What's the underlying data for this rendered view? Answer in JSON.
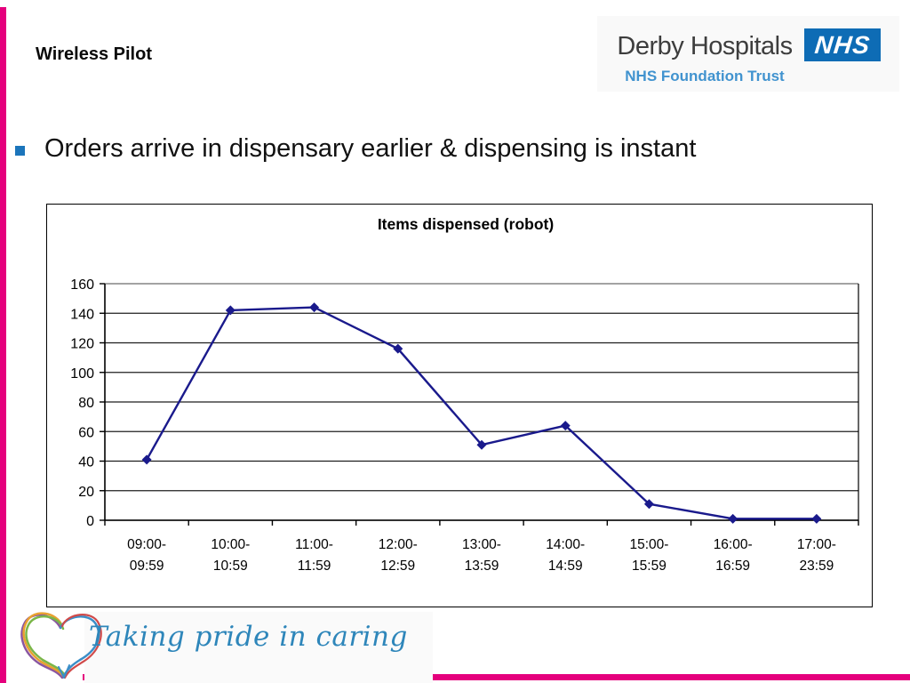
{
  "slide": {
    "title": "Wireless Pilot",
    "bullet_text": "Orders arrive in dispensary earlier & dispensing is instant"
  },
  "header_logo": {
    "org_name": "Derby Hospitals",
    "org_subtitle": "NHS Foundation Trust",
    "nhs_badge": "NHS"
  },
  "footer_logo": {
    "tagline": "Taking pride in caring",
    "heart_icon": "rainbow-heart-icon"
  },
  "colors": {
    "accent_pink": "#E5007D",
    "bullet_blue": "#1B75BB",
    "nhs_badge_blue": "#0E6CB5",
    "foundation_text_blue": "#4193CF",
    "line_series": "#1A1A8C",
    "tagline_blue": "#2E86BA",
    "gridline": "#1F1F1F",
    "top_gridline": "#A3A3A3"
  },
  "chart_data": {
    "type": "line",
    "title": "Items dispensed (robot)",
    "categories": [
      "09:00-09:59",
      "10:00-10:59",
      "11:00-11:59",
      "12:00-12:59",
      "13:00-13:59",
      "14:00-14:59",
      "15:00-15:59",
      "16:00-16:59",
      "17:00-23:59"
    ],
    "series": [
      {
        "name": "Items dispensed",
        "values": [
          41,
          142,
          144,
          116,
          51,
          64,
          11,
          1,
          1
        ]
      }
    ],
    "xlabel": "",
    "ylabel": "",
    "ylim": [
      0,
      160
    ],
    "ytick_step": 20,
    "grid": "horizontal",
    "legend": "none",
    "marker": "diamond"
  }
}
